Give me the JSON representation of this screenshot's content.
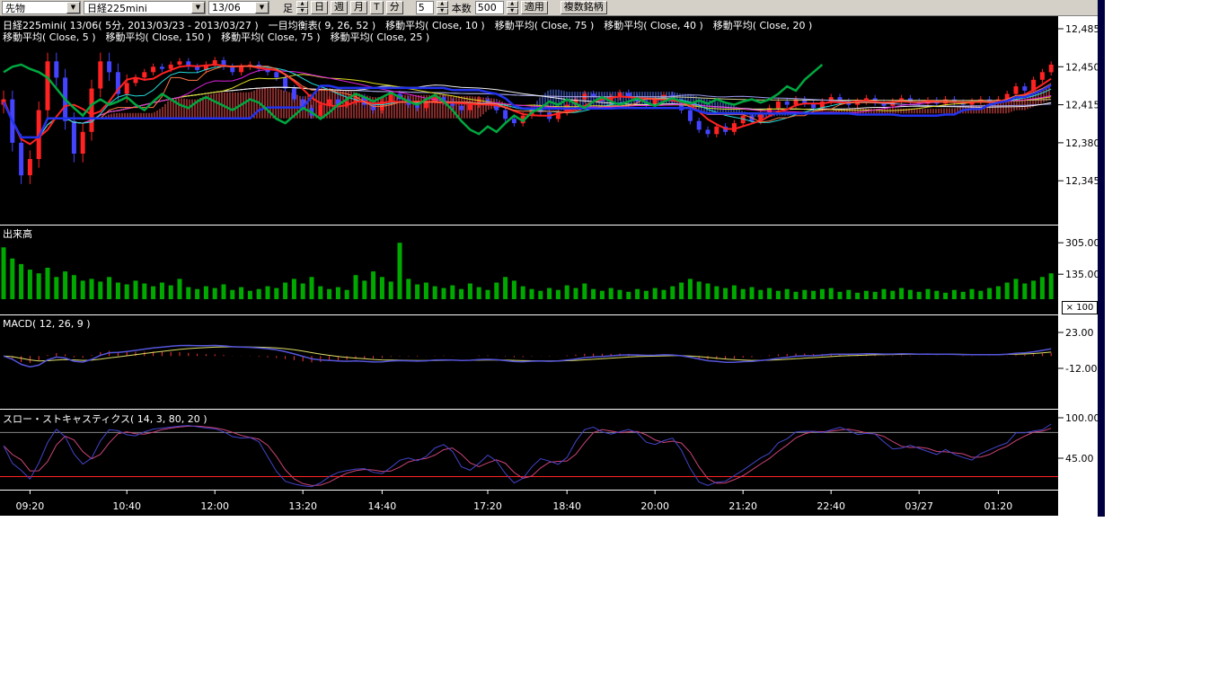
{
  "toolbar": {
    "category": "先物",
    "symbol": "日経225mini",
    "contract": "13/06",
    "timeframe_label": "足",
    "day": "日",
    "week": "週",
    "month": "月",
    "tick": "T",
    "minute": "分",
    "minute_value": "5",
    "bars_label": "本数",
    "bars_value": "500",
    "apply": "適用",
    "multi_symbol": "複数銘柄"
  },
  "chart": {
    "header_line1": "日経225mini( 13/06( 5分, 2013/03/23 - 2013/03/27 )　一目均衡表( 9, 26, 52 )　移動平均( Close, 10 )　移動平均( Close, 75 )　移動平均( Close, 40 )　移動平均( Close, 20 )",
    "header_line2": "移動平均( Close, 5 )　移動平均( Close, 150 )　移動平均( Close, 75 )　移動平均( Close, 25 )",
    "volume_label": "出来高",
    "macd_label": "MACD( 12, 26, 9 )",
    "stoch_label": "スロー・ストキャスティクス( 14, 3, 80, 20 )",
    "multiplier_label": "× 100"
  },
  "colors": {
    "plot_bg": "#000000",
    "toolbar_bg": "#d4d0c8",
    "axis_bg": "#ffffff",
    "right_strip": "#000040",
    "up_candle": "#ff2222",
    "down_candle": "#4444ff",
    "volume_bar": "#00a800",
    "cloud_bull": "#ff5555",
    "cloud_bear": "#5577ff",
    "tenkan": "#ff7744",
    "kijun": "#2233ee",
    "chikou": "#00a840",
    "sma_colors": {
      "5": "#ff2222",
      "10": "#22dddd",
      "20": "#dd22dd",
      "25": "#dddd22",
      "40": "#eeeeee",
      "75": "#9999ee",
      "150": "#cccc88"
    },
    "macd_line": "#5555dd",
    "macd_signal": "#dddd66",
    "macd_hist": "#ff3333",
    "stoch_k": "#4444cc",
    "stoch_d": "#cc4477",
    "stoch_ref_high": "#888888",
    "stoch_ref_low": "#ff2222"
  },
  "chart_data": {
    "type": "candlestick",
    "title": "日経225mini 13/06 5分足 2013/03/23 - 2013/03/27",
    "bars": 120,
    "volume_unit": "×100",
    "indicators": {
      "ichimoku": [
        9,
        26,
        52
      ],
      "sma": [
        150,
        75,
        40,
        25,
        20,
        10,
        5
      ],
      "macd": [
        12,
        26,
        9
      ],
      "slow_stochastics": [
        14,
        3,
        80,
        20
      ]
    },
    "price_axis": {
      "ticks": [
        12485,
        12450,
        12415,
        12380,
        12345
      ],
      "labels": [
        "12,485",
        "12,450",
        "12,415",
        "12,380",
        "12,345"
      ]
    },
    "volume_axis": {
      "ticks": [
        305,
        135
      ],
      "labels": [
        "305.00",
        "135.00"
      ]
    },
    "macd_axis": {
      "ticks": [
        23,
        -12
      ],
      "labels": [
        "23.00",
        "-12.00"
      ]
    },
    "stoch_axis": {
      "ticks": [
        100,
        45
      ],
      "labels": [
        "100.00",
        "45.00"
      ],
      "ref_lines": [
        80,
        20
      ]
    },
    "time_ticks": [
      {
        "label": "09:20",
        "i": 3
      },
      {
        "label": "10:40",
        "i": 14
      },
      {
        "label": "12:00",
        "i": 24
      },
      {
        "label": "13:20",
        "i": 34
      },
      {
        "label": "14:40",
        "i": 43
      },
      {
        "label": "17:20",
        "i": 55
      },
      {
        "label": "18:40",
        "i": 64
      },
      {
        "label": "20:00",
        "i": 74
      },
      {
        "label": "21:20",
        "i": 84
      },
      {
        "label": "22:40",
        "i": 94
      },
      {
        "label": "03/27",
        "i": 104
      },
      {
        "label": "01:20",
        "i": 113
      }
    ],
    "ohlc": {
      "open": [
        12415,
        12420,
        12380,
        12350,
        12365,
        12410,
        12455,
        12440,
        12400,
        12370,
        12390,
        12430,
        12455,
        12445,
        12425,
        12435,
        12440,
        12445,
        12450,
        12448,
        12452,
        12455,
        12450,
        12447,
        12452,
        12456,
        12450,
        12445,
        12450,
        12452,
        12448,
        12445,
        12440,
        12430,
        12420,
        12412,
        12405,
        12415,
        12420,
        12415,
        12418,
        12422,
        12415,
        12410,
        12418,
        12425,
        12420,
        12415,
        12412,
        12418,
        12422,
        12418,
        12414,
        12410,
        12415,
        12420,
        12417,
        12410,
        12402,
        12398,
        12405,
        12412,
        12408,
        12402,
        12408,
        12415,
        12420,
        12425,
        12422,
        12418,
        12422,
        12426,
        12422,
        12418,
        12415,
        12420,
        12424,
        12418,
        12410,
        12400,
        12392,
        12388,
        12395,
        12390,
        12398,
        12405,
        12400,
        12408,
        12412,
        12418,
        12415,
        12420,
        12416,
        12412,
        12418,
        12422,
        12418,
        12415,
        12418,
        12421,
        12417,
        12414,
        12418,
        12421,
        12418,
        12416,
        12419,
        12416,
        12420,
        12417,
        12415,
        12418,
        12420,
        12417,
        12420,
        12425,
        12432,
        12428,
        12438,
        12445
      ],
      "high": [
        12428,
        12428,
        12388,
        12373,
        12418,
        12463,
        12463,
        12448,
        12408,
        12398,
        12438,
        12463,
        12463,
        12453,
        12443,
        12443,
        12448,
        12453,
        12453,
        12455,
        12458,
        12458,
        12453,
        12455,
        12459,
        12459,
        12453,
        12453,
        12455,
        12455,
        12451,
        12448,
        12443,
        12433,
        12423,
        12415,
        12418,
        12423,
        12423,
        12421,
        12425,
        12425,
        12418,
        12421,
        12428,
        12428,
        12423,
        12418,
        12421,
        12425,
        12425,
        12421,
        12417,
        12418,
        12423,
        12423,
        12420,
        12413,
        12405,
        12408,
        12415,
        12415,
        12411,
        12411,
        12418,
        12423,
        12428,
        12428,
        12425,
        12425,
        12429,
        12429,
        12425,
        12421,
        12423,
        12427,
        12427,
        12421,
        12413,
        12403,
        12395,
        12398,
        12398,
        12401,
        12408,
        12408,
        12411,
        12415,
        12421,
        12421,
        12423,
        12423,
        12419,
        12421,
        12425,
        12425,
        12421,
        12421,
        12424,
        12424,
        12420,
        12421,
        12424,
        12424,
        12421,
        12422,
        12422,
        12423,
        12423,
        12420,
        12421,
        12423,
        12423,
        12423,
        12428,
        12435,
        12435,
        12441,
        12448,
        12455
      ],
      "low": [
        12407,
        12372,
        12342,
        12342,
        12357,
        12402,
        12432,
        12392,
        12362,
        12362,
        12382,
        12422,
        12437,
        12417,
        12417,
        12432,
        12437,
        12442,
        12445,
        12445,
        12449,
        12447,
        12444,
        12444,
        12449,
        12447,
        12442,
        12442,
        12447,
        12445,
        12442,
        12437,
        12427,
        12417,
        12409,
        12402,
        12402,
        12412,
        12412,
        12412,
        12415,
        12412,
        12407,
        12407,
        12415,
        12417,
        12412,
        12409,
        12409,
        12415,
        12415,
        12411,
        12407,
        12407,
        12412,
        12414,
        12407,
        12399,
        12395,
        12395,
        12402,
        12405,
        12399,
        12399,
        12405,
        12412,
        12417,
        12419,
        12415,
        12415,
        12419,
        12419,
        12415,
        12412,
        12412,
        12417,
        12415,
        12407,
        12397,
        12389,
        12385,
        12385,
        12387,
        12387,
        12395,
        12397,
        12397,
        12405,
        12409,
        12412,
        12412,
        12413,
        12409,
        12409,
        12415,
        12415,
        12412,
        12412,
        12415,
        12414,
        12411,
        12411,
        12415,
        12415,
        12413,
        12413,
        12413,
        12413,
        12414,
        12412,
        12412,
        12415,
        12414,
        12414,
        12417,
        12422,
        12425,
        12425,
        12435,
        12442
      ],
      "close": [
        12420,
        12380,
        12350,
        12365,
        12410,
        12455,
        12440,
        12400,
        12370,
        12390,
        12430,
        12455,
        12445,
        12425,
        12435,
        12440,
        12445,
        12450,
        12448,
        12452,
        12455,
        12450,
        12447,
        12452,
        12456,
        12450,
        12445,
        12450,
        12452,
        12448,
        12445,
        12440,
        12430,
        12420,
        12412,
        12405,
        12415,
        12420,
        12415,
        12418,
        12422,
        12415,
        12410,
        12418,
        12425,
        12420,
        12415,
        12412,
        12418,
        12422,
        12418,
        12414,
        12410,
        12415,
        12420,
        12417,
        12410,
        12402,
        12398,
        12405,
        12412,
        12408,
        12402,
        12408,
        12415,
        12420,
        12425,
        12422,
        12418,
        12422,
        12426,
        12422,
        12418,
        12415,
        12420,
        12424,
        12418,
        12410,
        12400,
        12392,
        12388,
        12395,
        12390,
        12398,
        12405,
        12400,
        12408,
        12412,
        12418,
        12415,
        12420,
        12416,
        12412,
        12418,
        12422,
        12418,
        12415,
        12418,
        12421,
        12417,
        12414,
        12418,
        12421,
        12418,
        12416,
        12419,
        12416,
        12420,
        12417,
        12415,
        12418,
        12420,
        12417,
        12420,
        12425,
        12432,
        12428,
        12438,
        12445,
        12452
      ]
    },
    "volume": [
      280,
      220,
      190,
      160,
      140,
      170,
      120,
      150,
      130,
      100,
      110,
      95,
      120,
      90,
      80,
      100,
      85,
      70,
      90,
      75,
      110,
      65,
      55,
      70,
      60,
      80,
      50,
      65,
      45,
      55,
      70,
      60,
      90,
      110,
      85,
      120,
      70,
      55,
      65,
      50,
      130,
      100,
      150,
      120,
      95,
      305,
      110,
      80,
      90,
      70,
      60,
      75,
      55,
      85,
      65,
      50,
      90,
      120,
      100,
      70,
      55,
      45,
      60,
      50,
      75,
      60,
      85,
      55,
      45,
      60,
      50,
      40,
      55,
      45,
      60,
      50,
      70,
      90,
      110,
      95,
      85,
      70,
      60,
      75,
      55,
      65,
      50,
      60,
      45,
      55,
      40,
      50,
      45,
      55,
      60,
      40,
      50,
      35,
      45,
      40,
      55,
      45,
      60,
      50,
      40,
      55,
      45,
      35,
      50,
      40,
      55,
      45,
      60,
      70,
      90,
      110,
      85,
      100,
      120,
      140
    ]
  }
}
